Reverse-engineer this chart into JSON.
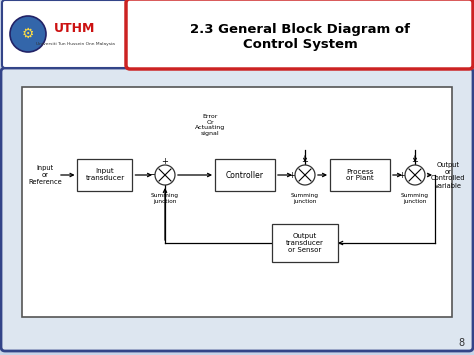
{
  "title_line1": "2.3 General Block Diagram of",
  "title_line2": "Control System",
  "slide_bg": "#c8d4e8",
  "content_bg": "#dde6f0",
  "inner_bg": "#ffffff",
  "page_number": "8",
  "header_bg": "#ffffff",
  "header_border": "#cc2222",
  "logo_border": "#334488"
}
